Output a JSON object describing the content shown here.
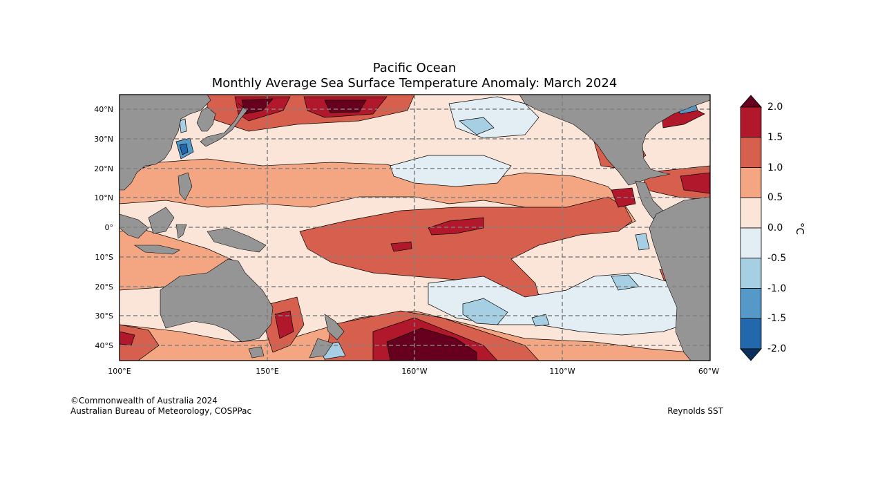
{
  "title": {
    "line1": "Pacific Ocean",
    "line2": "Monthly Average Sea Surface Temperature Anomaly: March 2024"
  },
  "map": {
    "lon_labels": [
      "100°E",
      "150°E",
      "160°W",
      "110°W",
      "60°W"
    ],
    "lat_labels": [
      "40°N",
      "30°N",
      "20°N",
      "10°N",
      "0°",
      "10°S",
      "20°S",
      "30°S",
      "40°S"
    ],
    "land_color": "#959595",
    "grid": "dashed"
  },
  "colorbar": {
    "unit": "°C",
    "tick_labels": [
      "2.0",
      "1.5",
      "1.0",
      "0.5",
      "0.0",
      "-0.5",
      "-1.0",
      "-1.5",
      "-2.0"
    ],
    "colors_top_to_bottom": [
      "#67001f",
      "#b2182b",
      "#d6604d",
      "#f4a582",
      "#fbe5d9",
      "#e2edf4",
      "#a6cfe3",
      "#5599c9",
      "#2268ad",
      "#0c2f5e"
    ]
  },
  "credits": {
    "copyright": "©Commonwealth of Australia 2024",
    "org": "Australian Bureau of Meteorology, COSPPac",
    "source": "Reynolds SST"
  }
}
